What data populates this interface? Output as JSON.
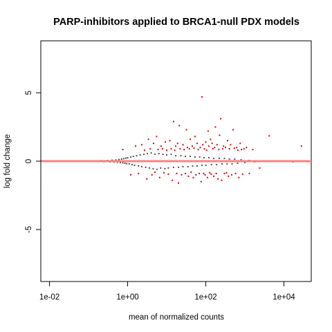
{
  "chart_data": {
    "type": "scatter",
    "title": "PARP-inhibitors applied to BRCA1-null PDX models",
    "xlabel": "mean of normalized counts",
    "ylabel": "log fold change",
    "x_scale": "log10",
    "xlim": [
      0.006,
      50000
    ],
    "ylim": [
      -8.8,
      8.8
    ],
    "x_ticks": [
      0.01,
      1,
      100,
      10000
    ],
    "x_tick_labels": [
      "1e-02",
      "1e+00",
      "1e+02",
      "1e+04"
    ],
    "y_ticks": [
      -5,
      0,
      5
    ],
    "y_tick_labels": [
      "-5",
      "0",
      "5"
    ],
    "grid": false,
    "legend": "none",
    "reference_line": {
      "y": 0,
      "color": "#ff8080"
    },
    "series": [
      {
        "color": "#4d4d4d",
        "description_points": "non-significant genes",
        "points": [
          [
            0.013,
            0.0
          ],
          [
            0.02,
            0.01
          ],
          [
            0.03,
            -0.01
          ],
          [
            0.045,
            0.0
          ],
          [
            0.06,
            0.02
          ],
          [
            0.08,
            -0.01
          ],
          [
            0.1,
            0.02
          ],
          [
            0.12,
            -0.02
          ],
          [
            0.15,
            0.03
          ],
          [
            0.18,
            -0.03
          ],
          [
            0.21,
            0.04
          ],
          [
            0.25,
            -0.04
          ],
          [
            0.3,
            0.05
          ],
          [
            0.35,
            -0.05
          ],
          [
            0.4,
            0.07
          ],
          [
            0.45,
            -0.06
          ],
          [
            0.5,
            0.09
          ],
          [
            0.55,
            -0.08
          ],
          [
            0.6,
            0.12
          ],
          [
            0.65,
            -0.1
          ],
          [
            0.7,
            0.15
          ],
          [
            0.75,
            -0.12
          ],
          [
            0.8,
            0.18
          ],
          [
            0.85,
            -0.15
          ],
          [
            0.9,
            0.22
          ],
          [
            0.95,
            -0.18
          ],
          [
            1.0,
            0.25
          ],
          [
            1.1,
            -0.2
          ],
          [
            1.2,
            0.3
          ],
          [
            1.3,
            -0.25
          ],
          [
            1.4,
            0.35
          ],
          [
            1.5,
            -0.3
          ],
          [
            1.7,
            0.4
          ],
          [
            1.9,
            -0.35
          ],
          [
            2.1,
            0.45
          ],
          [
            2.3,
            -0.4
          ],
          [
            2.6,
            0.5
          ],
          [
            2.9,
            -0.45
          ],
          [
            3.2,
            0.55
          ],
          [
            3.6,
            -0.5
          ],
          [
            4.0,
            0.6
          ],
          [
            4.5,
            -0.55
          ],
          [
            5.0,
            0.5
          ],
          [
            5.6,
            -0.6
          ],
          [
            6.3,
            0.55
          ],
          [
            7.0,
            -0.5
          ],
          [
            8.0,
            0.5
          ],
          [
            9.0,
            -0.55
          ],
          [
            10,
            0.45
          ],
          [
            11,
            -0.5
          ],
          [
            13,
            0.5
          ],
          [
            15,
            -0.45
          ],
          [
            17,
            0.4
          ],
          [
            20,
            -0.45
          ],
          [
            23,
            0.4
          ],
          [
            26,
            -0.4
          ],
          [
            30,
            0.35
          ],
          [
            35,
            -0.4
          ],
          [
            40,
            0.35
          ],
          [
            46,
            -0.35
          ],
          [
            53,
            0.3
          ],
          [
            60,
            -0.35
          ],
          [
            70,
            0.3
          ],
          [
            80,
            -0.3
          ],
          [
            90,
            0.25
          ],
          [
            100,
            -0.3
          ],
          [
            120,
            0.25
          ],
          [
            140,
            -0.25
          ],
          [
            160,
            0.2
          ],
          [
            190,
            -0.25
          ],
          [
            220,
            0.2
          ],
          [
            260,
            -0.2
          ],
          [
            300,
            0.2
          ],
          [
            350,
            -0.2
          ],
          [
            400,
            0.15
          ],
          [
            470,
            -0.2
          ],
          [
            550,
            0.15
          ],
          [
            650,
            -0.15
          ],
          [
            800,
            0.1
          ],
          [
            1000,
            -0.1
          ],
          [
            1300,
            0.05
          ],
          [
            1800,
            -0.05
          ]
        ]
      },
      {
        "color": "#cc0000",
        "description_points": "significant genes",
        "points": [
          [
            0.75,
            0.85
          ],
          [
            1.2,
            -1.0
          ],
          [
            1.6,
            1.1
          ],
          [
            1.9,
            -0.9
          ],
          [
            2.3,
            1.2
          ],
          [
            2.7,
            0.8
          ],
          [
            3.1,
            -1.3
          ],
          [
            3.4,
            1.6
          ],
          [
            3.8,
            0.9
          ],
          [
            4.2,
            -1.0
          ],
          [
            4.6,
            1.3
          ],
          [
            5.0,
            -0.8
          ],
          [
            5.5,
            1.8
          ],
          [
            6.0,
            0.85
          ],
          [
            6.6,
            -1.2
          ],
          [
            7.2,
            1.1
          ],
          [
            7.8,
            0.9
          ],
          [
            8.5,
            -0.85
          ],
          [
            9.2,
            1.4
          ],
          [
            10,
            0.8
          ],
          [
            11,
            -0.95
          ],
          [
            12,
            1.5
          ],
          [
            13,
            0.9
          ],
          [
            14,
            -1.4
          ],
          [
            15,
            2.9
          ],
          [
            16,
            0.8
          ],
          [
            17,
            1.1
          ],
          [
            18,
            -0.9
          ],
          [
            19,
            1.3
          ],
          [
            20,
            -1.6
          ],
          [
            21,
            2.6
          ],
          [
            22,
            0.9
          ],
          [
            24,
            -1.0
          ],
          [
            26,
            1.2
          ],
          [
            28,
            0.85
          ],
          [
            30,
            -0.9
          ],
          [
            32,
            2.3
          ],
          [
            34,
            1.0
          ],
          [
            36,
            -1.1
          ],
          [
            38,
            0.9
          ],
          [
            40,
            1.6
          ],
          [
            42,
            -0.8
          ],
          [
            45,
            1.1
          ],
          [
            48,
            -1.2
          ],
          [
            50,
            0.95
          ],
          [
            53,
            1.8
          ],
          [
            56,
            -1.0
          ],
          [
            60,
            1.3
          ],
          [
            64,
            0.85
          ],
          [
            68,
            -0.9
          ],
          [
            72,
            1.0
          ],
          [
            76,
            -1.5
          ],
          [
            80,
            4.7
          ],
          [
            84,
            1.2
          ],
          [
            88,
            -0.9
          ],
          [
            92,
            0.9
          ],
          [
            96,
            -1.0
          ],
          [
            100,
            1.4
          ],
          [
            105,
            0.8
          ],
          [
            110,
            -1.2
          ],
          [
            115,
            2.2
          ],
          [
            120,
            1.1
          ],
          [
            126,
            -0.85
          ],
          [
            132,
            1.6
          ],
          [
            138,
            -0.95
          ],
          [
            145,
            1.3
          ],
          [
            152,
            0.9
          ],
          [
            160,
            -1.1
          ],
          [
            168,
            1.0
          ],
          [
            176,
            2.5
          ],
          [
            185,
            -0.9
          ],
          [
            195,
            1.2
          ],
          [
            205,
            -1.3
          ],
          [
            215,
            0.85
          ],
          [
            225,
            1.9
          ],
          [
            240,
            3.1
          ],
          [
            255,
            -1.4
          ],
          [
            270,
            0.9
          ],
          [
            285,
            1.1
          ],
          [
            300,
            -0.9
          ],
          [
            320,
            1.0
          ],
          [
            340,
            -0.85
          ],
          [
            360,
            1.5
          ],
          [
            380,
            -1.1
          ],
          [
            400,
            0.9
          ],
          [
            430,
            1.2
          ],
          [
            460,
            -1.0
          ],
          [
            500,
            2.3
          ],
          [
            540,
            0.95
          ],
          [
            580,
            -0.9
          ],
          [
            620,
            1.0
          ],
          [
            660,
            0.8
          ],
          [
            700,
            -1.2
          ],
          [
            760,
            1.3
          ],
          [
            820,
            0.85
          ],
          [
            880,
            -0.95
          ],
          [
            950,
            0.9
          ],
          [
            1100,
            1.0
          ],
          [
            1300,
            -0.9
          ],
          [
            1600,
            0.85
          ],
          [
            2400,
            -0.5
          ],
          [
            4200,
            1.85
          ],
          [
            17000,
            -0.05
          ],
          [
            28000,
            1.1
          ]
        ]
      }
    ]
  }
}
